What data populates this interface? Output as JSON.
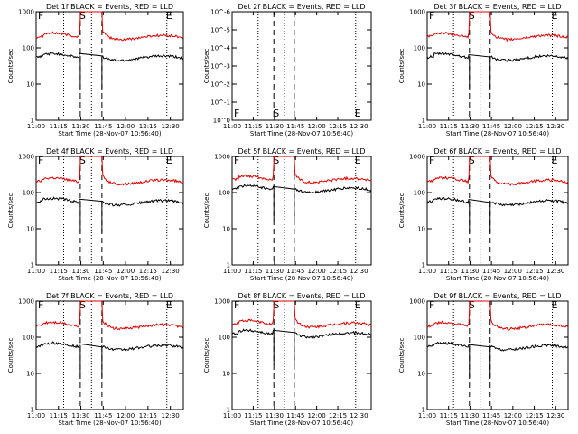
{
  "chart_data": [
    {
      "type": "line",
      "title": "Det 1f BLACK = Events, RED = LLD",
      "xlabel": "Start Time (28-Nov-07 10:56:40)",
      "ylabel": "Counts/sec",
      "yscale": "log",
      "xticks": [
        "11:00",
        "11:15",
        "11:30",
        "11:45",
        "12:00",
        "12:15",
        "12:30"
      ],
      "yticks": [
        "1",
        "10",
        "100",
        "1000"
      ],
      "ylim": [
        1,
        1000
      ],
      "markers": [
        "F",
        "S",
        "E"
      ],
      "series": [
        {
          "name": "LLD",
          "color": "#e00000",
          "level": "high"
        },
        {
          "name": "Events",
          "color": "#000000",
          "level": "low"
        }
      ],
      "has_data": true
    },
    {
      "type": "line",
      "title": "Det 2f BLACK = Events, RED = LLD",
      "xlabel": "Start Time (28-Nov-07 10:56:40)",
      "ylabel": "Counts/sec",
      "yscale": "log",
      "xticks": [
        "11:00",
        "11:15",
        "11:30",
        "11:45",
        "12:00",
        "12:15",
        "12:30"
      ],
      "yticks": [
        "10^0",
        "10^-1",
        "10^-2",
        "10^-3",
        "10^-4",
        "10^-5",
        "10^-6"
      ],
      "ylim": [
        1,
        1e-06
      ],
      "markers": [
        "F",
        "S",
        "E"
      ],
      "series": [],
      "has_data": false
    },
    {
      "type": "line",
      "title": "Det 3f BLACK = Events, RED = LLD",
      "xlabel": "Start Time (28-Nov-07 10:56:40)",
      "ylabel": "Counts/sec",
      "yscale": "log",
      "xticks": [
        "11:00",
        "11:15",
        "11:30",
        "11:45",
        "12:00",
        "12:15",
        "12:30"
      ],
      "yticks": [
        "1",
        "10",
        "100",
        "1000"
      ],
      "ylim": [
        1,
        1000
      ],
      "markers": [
        "F",
        "S",
        "E"
      ],
      "series": [
        {
          "name": "LLD",
          "color": "#e00000"
        },
        {
          "name": "Events",
          "color": "#000000"
        }
      ],
      "has_data": true
    },
    {
      "type": "line",
      "title": "Det 4f BLACK = Events, RED = LLD",
      "xlabel": "Start Time (28-Nov-07 10:56:40)",
      "ylabel": "Counts/sec",
      "yscale": "log",
      "xticks": [
        "11:00",
        "11:15",
        "11:30",
        "11:45",
        "12:00",
        "12:15",
        "12:30"
      ],
      "yticks": [
        "1",
        "10",
        "100",
        "1000"
      ],
      "ylim": [
        1,
        1000
      ],
      "markers": [
        "F",
        "S",
        "E"
      ],
      "series": [
        {
          "name": "LLD",
          "color": "#e00000"
        },
        {
          "name": "Events",
          "color": "#000000"
        }
      ],
      "has_data": true
    },
    {
      "type": "line",
      "title": "Det 5f BLACK = Events, RED = LLD",
      "xlabel": "Start Time (28-Nov-07 10:56:40)",
      "ylabel": "Counts/sec",
      "yscale": "log",
      "xticks": [
        "11:00",
        "11:15",
        "11:30",
        "11:45",
        "12:00",
        "12:15",
        "12:30"
      ],
      "yticks": [
        "1",
        "10",
        "100",
        "1000"
      ],
      "ylim": [
        1,
        1000
      ],
      "markers": [
        "F",
        "S",
        "E"
      ],
      "series": [
        {
          "name": "LLD",
          "color": "#e00000"
        },
        {
          "name": "Events",
          "color": "#000000"
        }
      ],
      "has_data": true
    },
    {
      "type": "line",
      "title": "Det 6f BLACK = Events, RED = LLD",
      "xlabel": "Start Time (28-Nov-07 10:56:40)",
      "ylabel": "Counts/sec",
      "yscale": "log",
      "xticks": [
        "11:00",
        "11:15",
        "11:30",
        "11:45",
        "12:00",
        "12:15",
        "12:30"
      ],
      "yticks": [
        "1",
        "10",
        "100",
        "1000"
      ],
      "ylim": [
        1,
        1000
      ],
      "markers": [
        "F",
        "S",
        "E"
      ],
      "series": [
        {
          "name": "LLD",
          "color": "#e00000"
        },
        {
          "name": "Events",
          "color": "#000000"
        }
      ],
      "has_data": true
    },
    {
      "type": "line",
      "title": "Det 7f BLACK = Events, RED = LLD",
      "xlabel": "Start Time (28-Nov-07 10:56:40)",
      "ylabel": "Counts/sec",
      "yscale": "log",
      "xticks": [
        "11:00",
        "11:15",
        "11:30",
        "11:45",
        "12:00",
        "12:15",
        "12:30"
      ],
      "yticks": [
        "1",
        "10",
        "100",
        "1000"
      ],
      "ylim": [
        1,
        1000
      ],
      "markers": [
        "F",
        "S",
        "E"
      ],
      "series": [
        {
          "name": "LLD",
          "color": "#e00000"
        },
        {
          "name": "Events",
          "color": "#000000"
        }
      ],
      "has_data": true
    },
    {
      "type": "line",
      "title": "Det 8f BLACK = Events, RED = LLD",
      "xlabel": "Start Time (28-Nov-07 10:56:40)",
      "ylabel": "Counts/sec",
      "yscale": "log",
      "xticks": [
        "11:00",
        "11:15",
        "11:30",
        "11:45",
        "12:00",
        "12:15",
        "12:30"
      ],
      "yticks": [
        "1",
        "10",
        "100",
        "1000"
      ],
      "ylim": [
        1,
        1000
      ],
      "markers": [
        "F",
        "S",
        "E"
      ],
      "series": [
        {
          "name": "LLD",
          "color": "#e00000"
        },
        {
          "name": "Events",
          "color": "#000000"
        }
      ],
      "has_data": true
    },
    {
      "type": "line",
      "title": "Det 9f BLACK = Events, RED = LLD",
      "xlabel": "Start Time (28-Nov-07 10:56:40)",
      "ylabel": "Counts/sec",
      "yscale": "log",
      "xticks": [
        "11:00",
        "11:15",
        "11:30",
        "11:45",
        "12:00",
        "12:15",
        "12:30"
      ],
      "yticks": [
        "1",
        "10",
        "100",
        "1000"
      ],
      "ylim": [
        1,
        1000
      ],
      "markers": [
        "F",
        "S",
        "E"
      ],
      "series": [
        {
          "name": "LLD",
          "color": "#e00000"
        },
        {
          "name": "Events",
          "color": "#000000"
        }
      ],
      "has_data": true
    }
  ]
}
